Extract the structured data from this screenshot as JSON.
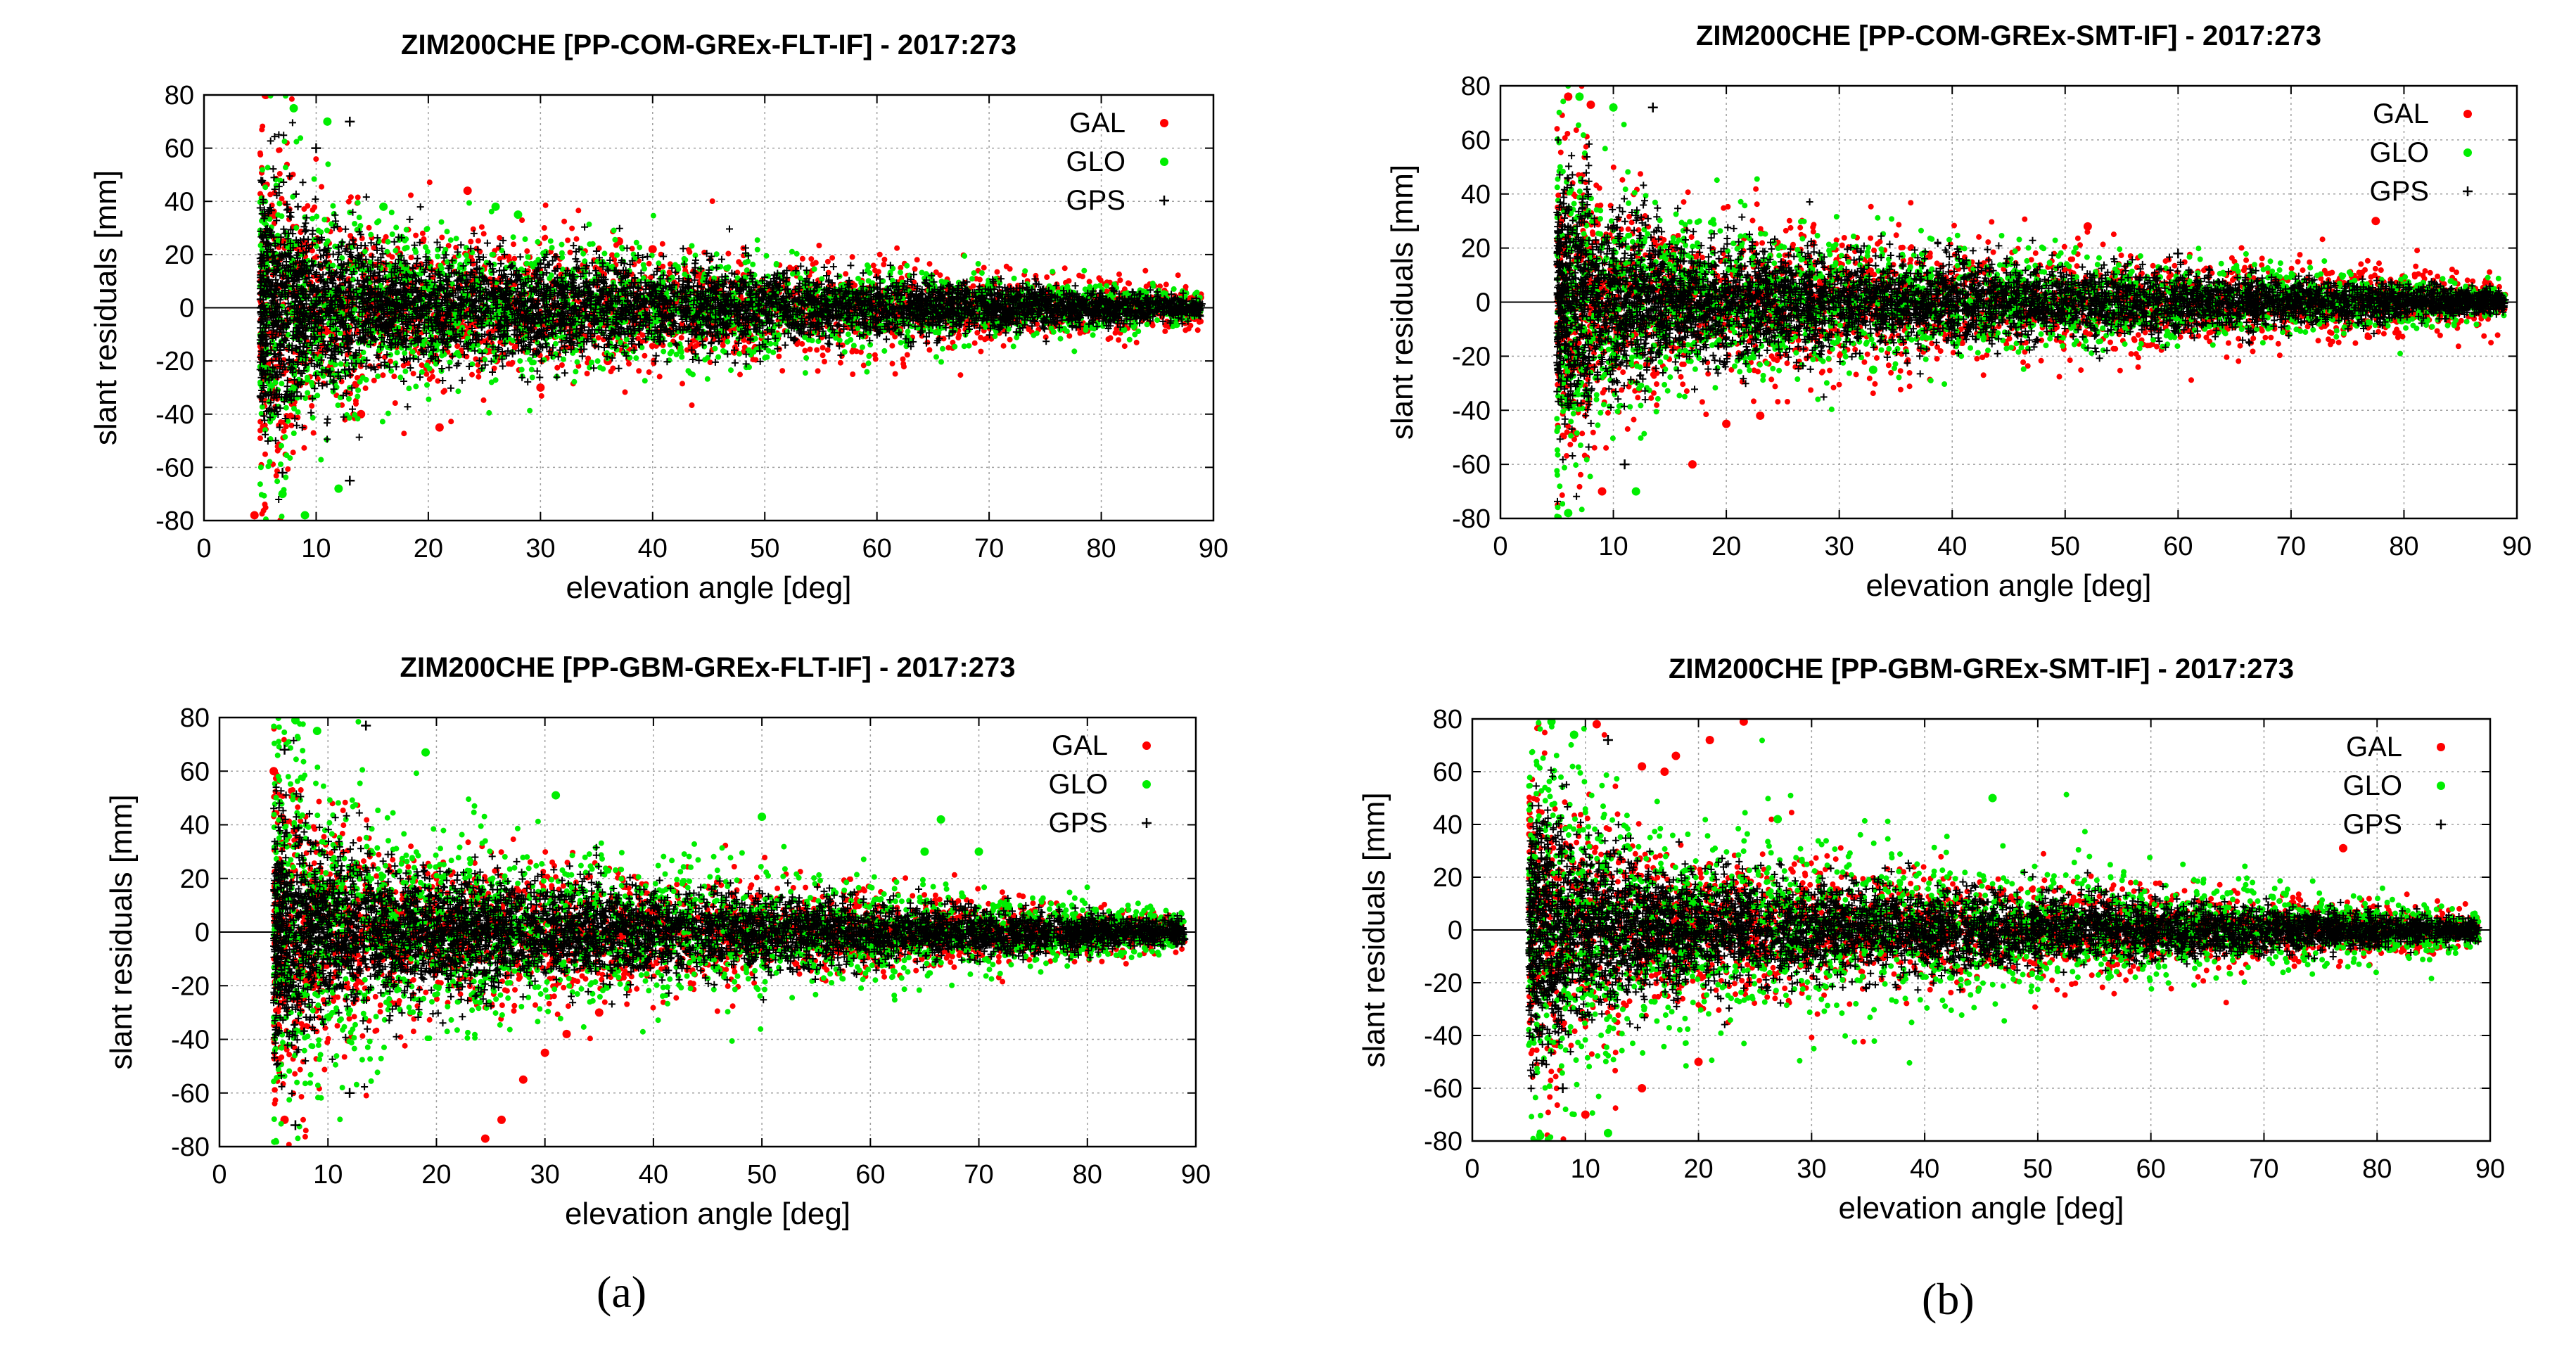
{
  "chart_data": [
    {
      "type": "scatter",
      "title": "ZIM200CHE [PP-COM-GREx-FLT-IF] - 2017:273",
      "xlabel": "elevation angle [deg]",
      "ylabel": "slant residuals [mm]",
      "xlim": [
        0,
        90
      ],
      "ylim": [
        -80,
        80
      ],
      "xticks": [
        "0",
        "10",
        "20",
        "30",
        "40",
        "50",
        "60",
        "70",
        "80",
        "90"
      ],
      "yticks": [
        "-80",
        "-60",
        "-40",
        "-20",
        "0",
        "20",
        "40",
        "60",
        "80"
      ],
      "grid": true,
      "legend_position": "top-right",
      "series": [
        {
          "name": "GAL",
          "marker": "dot",
          "color": "#ff0000",
          "spread_mm": [
            12,
            18
          ],
          "outliers": [
            [
              23.5,
              44
            ],
            [
              37,
              25
            ],
            [
              40,
              22
            ],
            [
              36,
              -20
            ],
            [
              21,
              -45
            ],
            [
              30,
              -30
            ],
            [
              14,
              -40
            ],
            [
              4.5,
              -78
            ],
            [
              5.5,
              80
            ]
          ]
        },
        {
          "name": "GLO",
          "marker": "dot",
          "color": "#00ee00",
          "spread_mm": [
            14,
            12
          ],
          "outliers": [
            [
              8,
              75
            ],
            [
              11,
              70
            ],
            [
              16,
              38
            ],
            [
              26,
              38
            ],
            [
              28,
              35
            ],
            [
              9,
              -78
            ],
            [
              12,
              -68
            ],
            [
              7,
              -70
            ]
          ]
        },
        {
          "name": "GPS",
          "marker": "plus",
          "color": "#000000",
          "spread_mm": [
            11,
            6
          ],
          "outliers": [
            [
              13,
              70
            ],
            [
              10,
              60
            ],
            [
              13,
              -65
            ],
            [
              7,
              -62
            ]
          ]
        }
      ]
    },
    {
      "type": "scatter",
      "title": "ZIM200CHE [PP-COM-GREx-SMT-IF] - 2017:273",
      "xlabel": "elevation angle [deg]",
      "ylabel": "slant residuals [mm]",
      "xlim": [
        0,
        90
      ],
      "ylim": [
        -80,
        80
      ],
      "xticks": [
        "0",
        "10",
        "20",
        "30",
        "40",
        "50",
        "60",
        "70",
        "80",
        "90"
      ],
      "yticks": [
        "-80",
        "-60",
        "-40",
        "-20",
        "0",
        "20",
        "40",
        "60",
        "80"
      ],
      "grid": true,
      "legend_position": "top-right",
      "series": [
        {
          "name": "GAL",
          "marker": "dot",
          "color": "#ff0000",
          "spread_mm": [
            12,
            22
          ],
          "outliers": [
            [
              77.5,
              30
            ],
            [
              52,
              28
            ],
            [
              23,
              -42
            ],
            [
              17,
              -60
            ],
            [
              20,
              -45
            ],
            [
              9,
              -70
            ],
            [
              6,
              76
            ],
            [
              8,
              73
            ]
          ]
        },
        {
          "name": "GLO",
          "marker": "dot",
          "color": "#00ee00",
          "spread_mm": [
            14,
            12
          ],
          "outliers": [
            [
              7,
              76
            ],
            [
              10,
              72
            ],
            [
              6,
              -78
            ],
            [
              12,
              -70
            ],
            [
              33,
              -25
            ]
          ]
        },
        {
          "name": "GPS",
          "marker": "plus",
          "color": "#000000",
          "spread_mm": [
            11,
            6
          ],
          "outliers": [
            [
              13.5,
              72
            ],
            [
              60,
              18
            ],
            [
              11,
              -60
            ]
          ]
        }
      ]
    },
    {
      "type": "scatter",
      "title": "ZIM200CHE [PP-GBM-GREx-FLT-IF] - 2017:273",
      "xlabel": "elevation angle [deg]",
      "ylabel": "slant residuals [mm]",
      "xlim": [
        0,
        90
      ],
      "ylim": [
        -80,
        80
      ],
      "xticks": [
        "0",
        "10",
        "20",
        "30",
        "40",
        "50",
        "60",
        "70",
        "80",
        "90"
      ],
      "yticks": [
        "-80",
        "-60",
        "-40",
        "-20",
        "0",
        "20",
        "40",
        "60",
        "80"
      ],
      "grid": true,
      "legend_position": "top-right",
      "series": [
        {
          "name": "GAL",
          "marker": "dot",
          "color": "#ff0000",
          "spread_mm": [
            14,
            12
          ],
          "outliers": [
            [
              24.5,
              -77
            ],
            [
              26,
              -70
            ],
            [
              28,
              -55
            ],
            [
              30,
              -45
            ],
            [
              32,
              -38
            ],
            [
              35,
              -30
            ],
            [
              6,
              -70
            ],
            [
              5,
              60
            ]
          ]
        },
        {
          "name": "GLO",
          "marker": "dot",
          "color": "#00ee00",
          "spread_mm": [
            18,
            16
          ],
          "outliers": [
            [
              7,
              79
            ],
            [
              9,
              75
            ],
            [
              19,
              67
            ],
            [
              31,
              51
            ],
            [
              50,
              43
            ],
            [
              66.5,
              42
            ],
            [
              65,
              30
            ],
            [
              70,
              30
            ]
          ]
        },
        {
          "name": "GPS",
          "marker": "plus",
          "color": "#000000",
          "spread_mm": [
            11,
            6
          ],
          "outliers": [
            [
              13.5,
              77
            ],
            [
              6,
              68
            ],
            [
              7,
              -72
            ],
            [
              12,
              -60
            ]
          ]
        }
      ]
    },
    {
      "type": "scatter",
      "title": "ZIM200CHE [PP-GBM-GREx-SMT-IF] - 2017:273",
      "xlabel": "elevation angle [deg]",
      "ylabel": "slant residuals [mm]",
      "xlim": [
        0,
        90
      ],
      "ylim": [
        -80,
        80
      ],
      "xticks": [
        "0",
        "10",
        "20",
        "30",
        "40",
        "50",
        "60",
        "70",
        "80",
        "90"
      ],
      "yticks": [
        "-80",
        "-60",
        "-40",
        "-20",
        "0",
        "20",
        "40",
        "60",
        "80"
      ],
      "grid": true,
      "legend_position": "top-right",
      "series": [
        {
          "name": "GAL",
          "marker": "dot",
          "color": "#ff0000",
          "spread_mm": [
            14,
            14
          ],
          "outliers": [
            [
              24,
              79
            ],
            [
              21,
              72
            ],
            [
              18,
              66
            ],
            [
              15,
              62
            ],
            [
              11,
              78
            ],
            [
              17,
              60
            ],
            [
              77,
              31
            ],
            [
              15,
              -60
            ],
            [
              20,
              -50
            ],
            [
              10,
              -70
            ]
          ]
        },
        {
          "name": "GLO",
          "marker": "dot",
          "color": "#00ee00",
          "spread_mm": [
            18,
            16
          ],
          "outliers": [
            [
              7,
              79
            ],
            [
              9,
              74
            ],
            [
              46,
              50
            ],
            [
              27,
              42
            ],
            [
              12,
              -77
            ],
            [
              6,
              -78
            ]
          ]
        },
        {
          "name": "GPS",
          "marker": "plus",
          "color": "#000000",
          "spread_mm": [
            11,
            6
          ],
          "outliers": [
            [
              12,
              72
            ],
            [
              8,
              -60
            ]
          ]
        }
      ]
    }
  ],
  "captions": [
    "(a)",
    "(b)"
  ]
}
